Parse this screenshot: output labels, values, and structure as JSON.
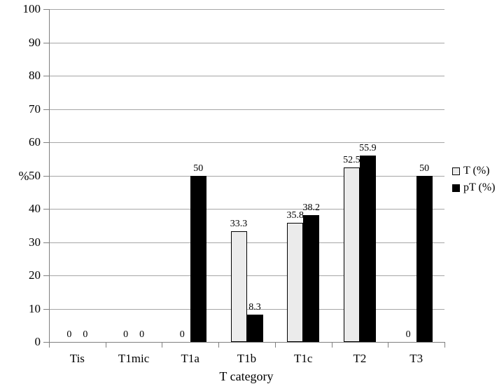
{
  "chart_data": {
    "type": "bar",
    "title": "",
    "xlabel": "T category",
    "ylabel": "%",
    "categories": [
      "Tis",
      "T1mic",
      "T1a",
      "T1b",
      "T1c",
      "T2",
      "T3"
    ],
    "series": [
      {
        "name": "T (%)",
        "values": [
          0,
          0,
          0,
          33.3,
          35.8,
          52.5,
          0
        ],
        "color": "#ebebeb",
        "border_color": "#000000"
      },
      {
        "name": "pT (%)",
        "values": [
          0,
          0,
          50,
          8.3,
          38.2,
          55.9,
          50
        ],
        "color": "#000000",
        "border_color": "#000000"
      }
    ],
    "value_labels": [
      [
        "0",
        "0",
        "0",
        "33.3",
        "35.8",
        "52.5",
        "0"
      ],
      [
        "0",
        "0",
        "50",
        "8.3",
        "38.2",
        "55.9",
        "50"
      ]
    ],
    "ylim": [
      0,
      100
    ],
    "ytick_step": 10,
    "ytick_labels": [
      "0",
      "10",
      "20",
      "30",
      "40",
      "50",
      "60",
      "70",
      "80",
      "90",
      "100"
    ],
    "grid": true,
    "legend_position": "right",
    "colors": {
      "background": "#ffffff",
      "gridline": "#a6a6a6",
      "axis": "#7f7f7f",
      "text": "#000000"
    }
  }
}
